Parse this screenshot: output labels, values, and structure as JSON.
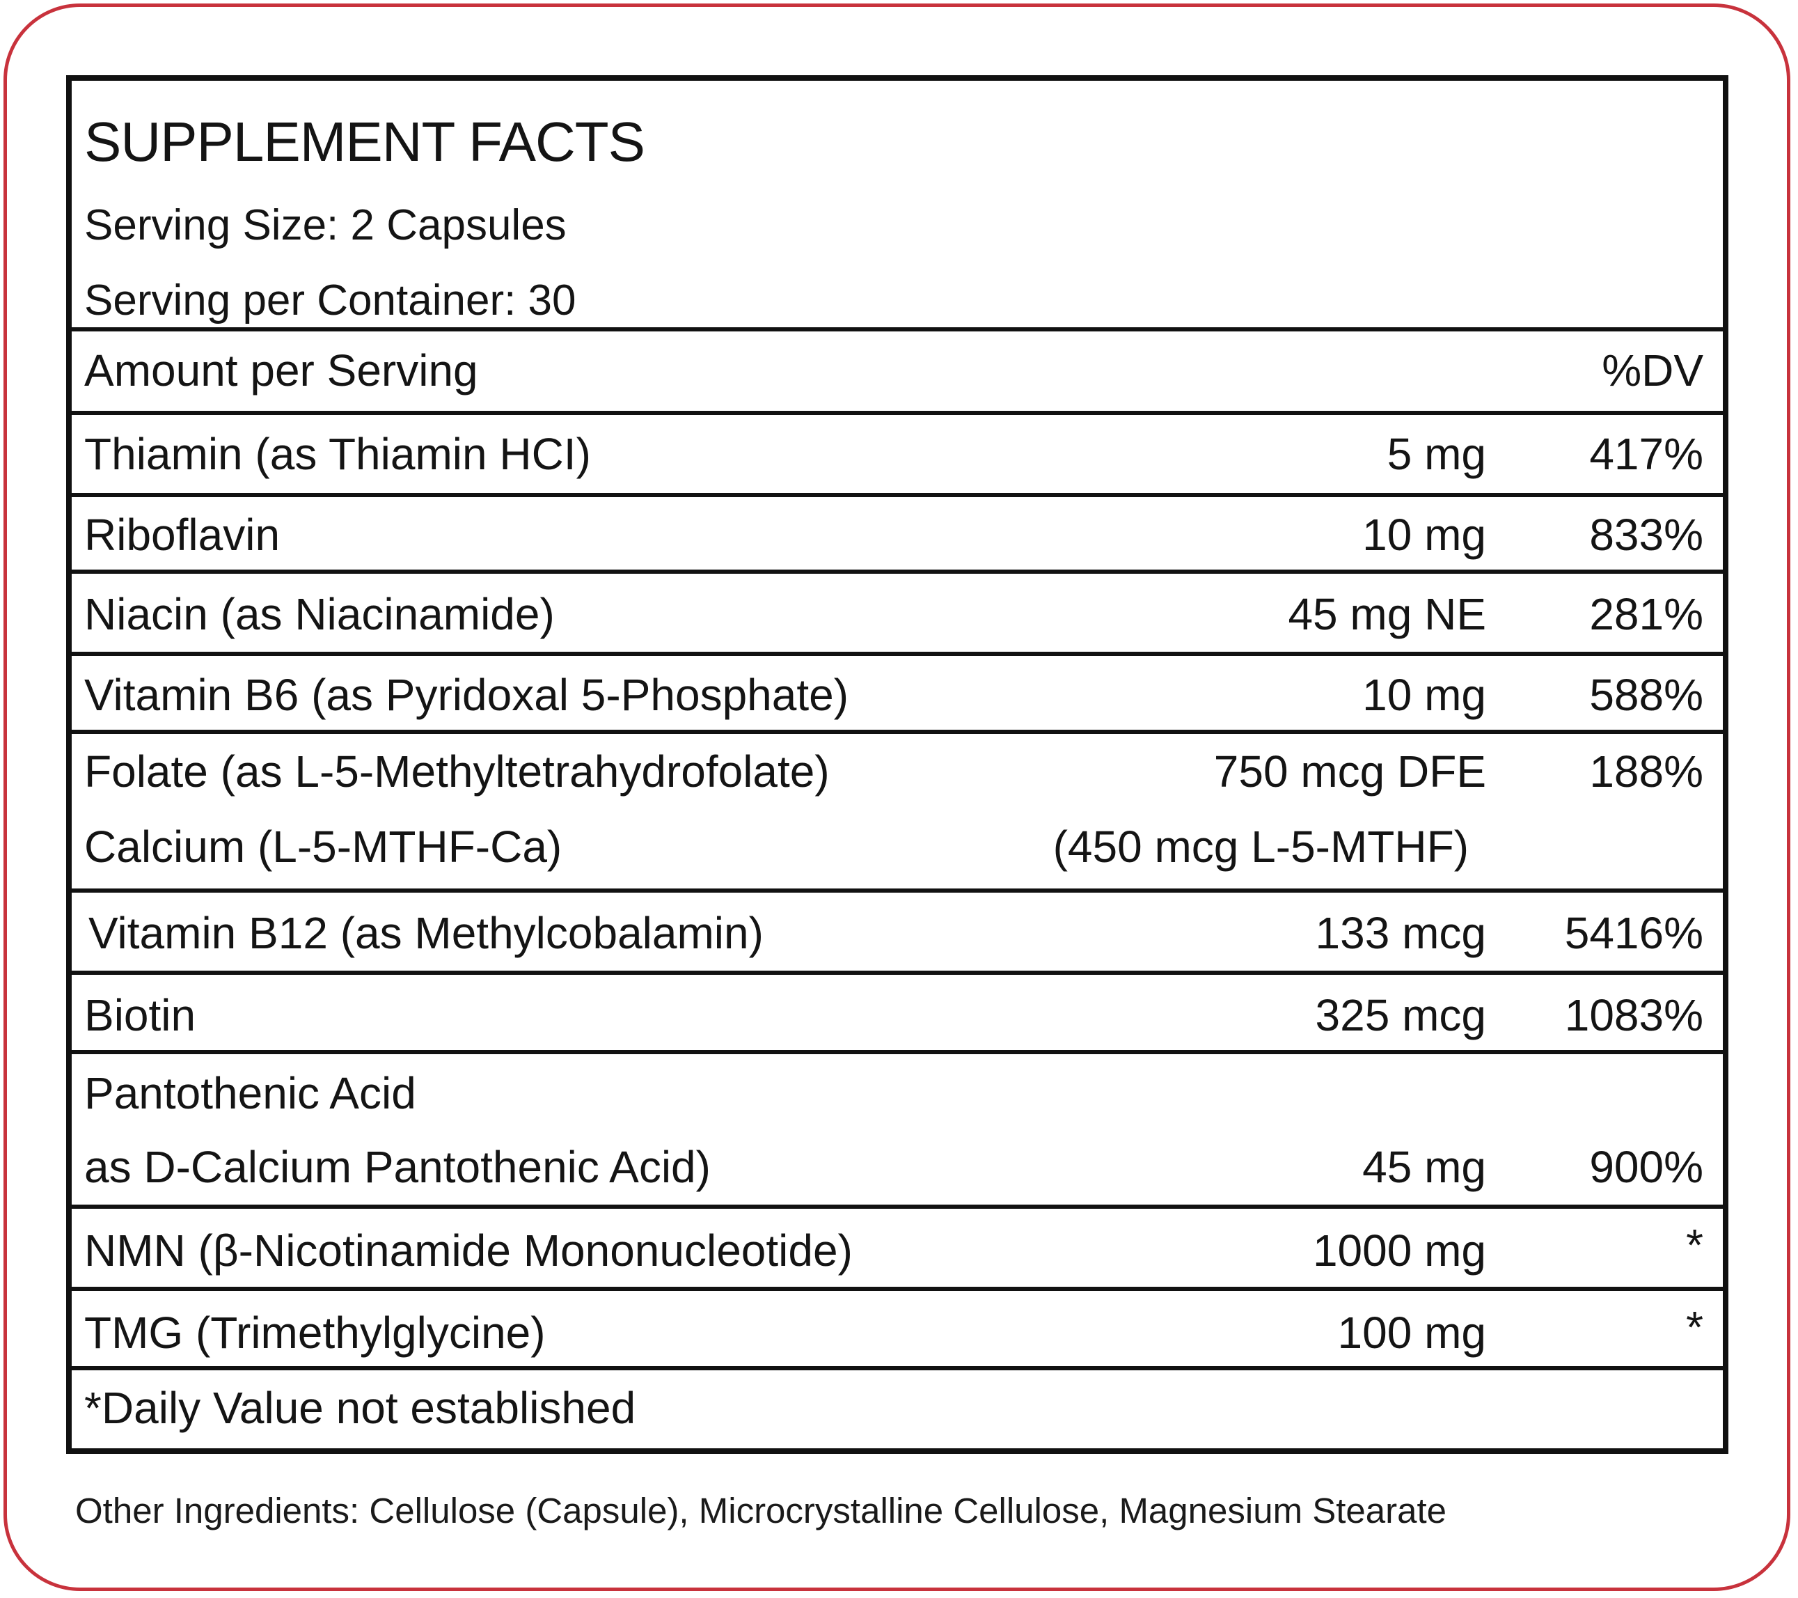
{
  "title": "SUPPLEMENT FACTS",
  "serving_size": "Serving Size: 2 Capsules",
  "servings_per_container": "Serving per Container: 30",
  "column_headers": {
    "amount": "Amount per Serving",
    "dv": "%DV"
  },
  "rows": [
    {
      "name": "Thiamin (as Thiamin HCI)",
      "amount": "5 mg",
      "dv": "417%"
    },
    {
      "name": "Riboflavin",
      "amount": "10 mg",
      "dv": "833%"
    },
    {
      "name": "Niacin (as Niacinamide)",
      "amount": "45 mg NE",
      "dv": "281%"
    },
    {
      "name": "Vitamin B6 (as Pyridoxal 5-Phosphate)",
      "amount": "10 mg",
      "dv": "588%"
    },
    {
      "name": "Folate (as L-5-Methyltetrahydrofolate)",
      "name_line2": "Calcium (L-5-MTHF-Ca)",
      "amount": "750 mcg DFE",
      "amount_line2": "(450 mcg L-5-MTHF)",
      "dv": "188%"
    },
    {
      "name": "Vitamin B12 (as Methylcobalamin)",
      "amount": "133 mcg",
      "dv": "5416%"
    },
    {
      "name": "Biotin",
      "amount": "325 mcg",
      "dv": "1083%"
    },
    {
      "name": "Pantothenic Acid",
      "name_line2": "as D-Calcium Pantothenic Acid)",
      "amount": "45 mg",
      "dv": "900%"
    },
    {
      "name": "NMN (β-Nicotinamide Mononucleotide)",
      "amount": "1000 mg",
      "dv": "*"
    },
    {
      "name": "TMG (Trimethylglycine)",
      "amount": "100 mg",
      "dv": "*"
    }
  ],
  "footnote": "*Daily Value not established",
  "other_ingredients": "Other Ingredients: Cellulose (Capsule), Microcrystalline Cellulose, Magnesium Stearate"
}
